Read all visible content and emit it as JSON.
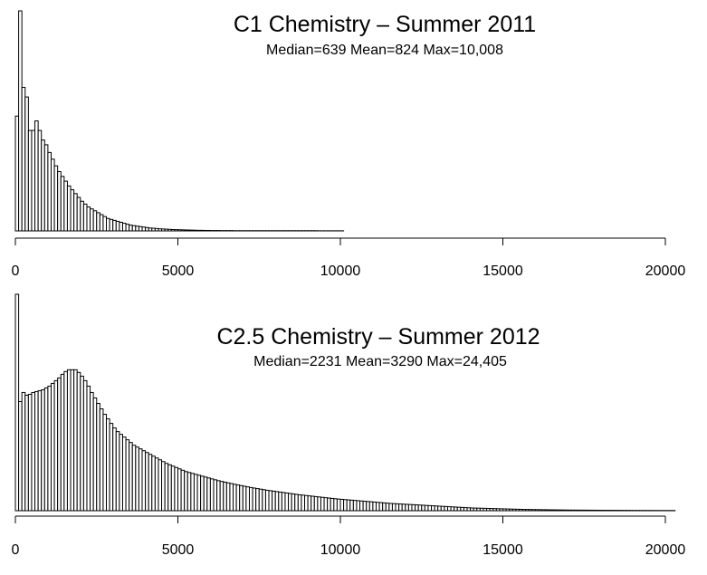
{
  "chart_data": [
    {
      "type": "bar",
      "title": "C1 Chemistry – Summer 2011",
      "subtitle": "Median=639 Mean=824 Max=10,008",
      "xlabel": "",
      "ylabel": "",
      "xlim": [
        0,
        20000
      ],
      "bin_width": 100,
      "x_ticks": [
        0,
        5000,
        10000,
        15000,
        20000
      ],
      "x_tick_labels": [
        "0",
        "5000",
        "10000",
        "15000",
        "20000"
      ],
      "bin_start": 0,
      "values": [
        120,
        230,
        150,
        140,
        105,
        105,
        115,
        105,
        95,
        90,
        82,
        75,
        68,
        62,
        57,
        52,
        47,
        43,
        39,
        35,
        31,
        28,
        25,
        23,
        21,
        19,
        17,
        15,
        13,
        12,
        11,
        10,
        9,
        8,
        7,
        6,
        5.5,
        5,
        4.5,
        4,
        3.5,
        3,
        2.8,
        2.5,
        2.2,
        2,
        1.8,
        1.6,
        1.4,
        1.3,
        1.2,
        1.1,
        1,
        0.9,
        0.8,
        0.7,
        0.6,
        0.6,
        0.5,
        0.5,
        0.4,
        0.4,
        0.4,
        0.3,
        0.3,
        0.3,
        0.3,
        0.2,
        0.2,
        0.2,
        0.2,
        0.2,
        0.2,
        0.2,
        0.2,
        0.2,
        0.2,
        0.2,
        0.2,
        0.2,
        0.2,
        0.2,
        0.2,
        0.2,
        0.2,
        0.2,
        0.2,
        0.2,
        0.2,
        0.2,
        0.2,
        0.2,
        0.2,
        0.1,
        0.1,
        0.1,
        0.1,
        0.1,
        0.1,
        0.1,
        0.1
      ]
    },
    {
      "type": "bar",
      "title": "C2.5 Chemistry – Summer 2012",
      "subtitle": "Median=2231 Mean=3290 Max=24,405",
      "xlabel": "",
      "ylabel": "",
      "xlim": [
        0,
        20000
      ],
      "bin_width": 100,
      "x_ticks": [
        0,
        5000,
        10000,
        15000,
        20000
      ],
      "x_tick_labels": [
        "0",
        "5000",
        "10000",
        "15000",
        "20000"
      ],
      "bin_start": 0,
      "values": [
        238,
        120,
        130,
        127,
        128,
        130,
        131,
        132,
        133,
        135,
        137,
        140,
        143,
        146,
        150,
        153,
        155,
        155,
        155,
        152,
        148,
        143,
        137,
        130,
        124,
        118,
        112,
        106,
        101,
        96,
        91,
        87,
        84,
        81,
        78,
        75,
        72,
        70,
        68,
        66,
        64,
        62,
        60,
        58,
        56,
        54,
        52,
        50.5,
        49,
        47.5,
        46,
        44.5,
        43,
        42,
        41,
        40,
        39,
        38,
        37,
        36,
        35,
        34,
        33,
        32.2,
        31.4,
        30.6,
        29.8,
        29,
        28.3,
        27.6,
        26.9,
        26.2,
        25.5,
        24.9,
        24.3,
        23.7,
        23.1,
        22.5,
        22,
        21.5,
        21,
        20.5,
        20,
        19.5,
        19,
        18.5,
        18,
        17.5,
        17.1,
        16.7,
        16.3,
        15.9,
        15.5,
        15.1,
        14.7,
        14.3,
        13.9,
        13.5,
        13.1,
        12.8,
        12.5,
        12.2,
        11.9,
        11.6,
        11.3,
        11,
        10.7,
        10.4,
        10.1,
        9.8,
        9.5,
        9.2,
        8.9,
        8.6,
        8.3,
        8,
        7.8,
        7.6,
        7.4,
        7.2,
        7,
        6.8,
        6.6,
        6.4,
        6.2,
        6,
        5.8,
        5.6,
        5.4,
        5.2,
        5,
        4.8,
        4.6,
        4.4,
        4.2,
        4,
        3.8,
        3.6,
        3.4,
        3.2,
        3,
        2.9,
        2.8,
        2.7,
        2.6,
        2.5,
        2.4,
        2.3,
        2.2,
        2.1,
        2,
        1.9,
        1.8,
        1.7,
        1.6,
        1.5,
        1.4,
        1.35,
        1.3,
        1.25,
        1.2,
        1.15,
        1.1,
        1.05,
        1,
        0.95,
        0.9,
        0.85,
        0.8,
        0.75,
        0.7,
        0.68,
        0.66,
        0.64,
        0.62,
        0.6,
        0.58,
        0.56,
        0.54,
        0.52,
        0.5,
        0.48,
        0.46,
        0.44,
        0.42,
        0.4,
        0.38,
        0.36,
        0.34,
        0.32,
        0.3,
        0.29,
        0.28,
        0.27,
        0.26,
        0.25,
        0.24,
        0.23,
        0.22,
        0.21,
        0.2,
        0.2,
        0.2
      ]
    }
  ]
}
